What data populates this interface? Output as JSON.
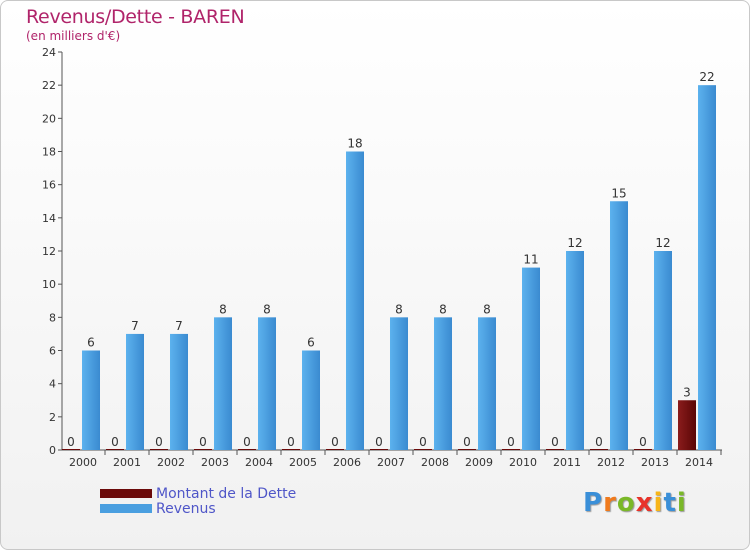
{
  "chart_data": {
    "type": "bar",
    "title": "Revenus/Dette - BAREN",
    "subtitle": "(en milliers d'€)",
    "categories": [
      "2000",
      "2001",
      "2002",
      "2003",
      "2004",
      "2005",
      "2006",
      "2007",
      "2008",
      "2009",
      "2010",
      "2011",
      "2012",
      "2013",
      "2014"
    ],
    "series": [
      {
        "name": "Montant de la Dette",
        "color": "#6b0a0a",
        "values": [
          0,
          0,
          0,
          0,
          0,
          0,
          0,
          0,
          0,
          0,
          0,
          0,
          0,
          0,
          3
        ]
      },
      {
        "name": "Revenus",
        "color": "#4a9fe0",
        "values": [
          6,
          7,
          7,
          8,
          8,
          6,
          18,
          8,
          8,
          8,
          11,
          12,
          15,
          12,
          22
        ]
      }
    ],
    "ylim": [
      0,
      24
    ],
    "yticks": [
      0,
      2,
      4,
      6,
      8,
      10,
      12,
      14,
      16,
      18,
      20,
      22,
      24
    ],
    "grid": false,
    "legend_position": "bottom-left"
  },
  "logo": {
    "letters": [
      "P",
      "r",
      "o",
      "x",
      "i",
      "t",
      "i"
    ],
    "colors": [
      "#3a8fd8",
      "#f07a1c",
      "#7ab828",
      "#e8332a",
      "#f7b519",
      "#3a8fd8",
      "#7ab828"
    ]
  }
}
